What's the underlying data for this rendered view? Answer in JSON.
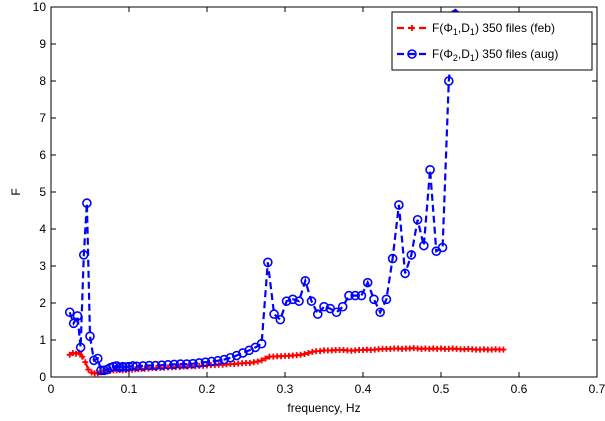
{
  "chart_data": {
    "type": "line",
    "title": "",
    "xlabel": "frequency, Hz",
    "ylabel": "F",
    "xlim": [
      0,
      0.7
    ],
    "ylim": [
      0,
      10
    ],
    "xticks": [
      0,
      0.1,
      0.2,
      0.3,
      0.4,
      0.5,
      0.6,
      0.7
    ],
    "yticks": [
      0,
      1,
      2,
      3,
      4,
      5,
      6,
      7,
      8,
      9,
      10
    ],
    "xtick_labels": [
      "0",
      "0.1",
      "0.2",
      "0.3",
      "0.4",
      "0.5",
      "0.6",
      "0.7"
    ],
    "ytick_labels": [
      "0",
      "1",
      "2",
      "3",
      "4",
      "5",
      "6",
      "7",
      "8",
      "9",
      "10"
    ],
    "grid": false,
    "legend_position": "top-right",
    "series": [
      {
        "name": "feb",
        "legend": {
          "prefix": "F(Φ",
          "sub1": "1",
          "mid": ",D",
          "sub2": "1",
          "suffix": ") 350 files (feb)"
        },
        "color": "#ff0000",
        "line_style": "dashed",
        "marker": "plus",
        "x": [
          0.024,
          0.028,
          0.032,
          0.036,
          0.04,
          0.044,
          0.048,
          0.052,
          0.056,
          0.06,
          0.064,
          0.068,
          0.072,
          0.076,
          0.08,
          0.084,
          0.088,
          0.092,
          0.096,
          0.1,
          0.104,
          0.108,
          0.112,
          0.116,
          0.12,
          0.125,
          0.13,
          0.135,
          0.14,
          0.145,
          0.15,
          0.155,
          0.16,
          0.165,
          0.17,
          0.175,
          0.18,
          0.185,
          0.19,
          0.195,
          0.2,
          0.205,
          0.21,
          0.215,
          0.22,
          0.225,
          0.23,
          0.235,
          0.24,
          0.245,
          0.25,
          0.255,
          0.26,
          0.265,
          0.27,
          0.275,
          0.28,
          0.285,
          0.29,
          0.295,
          0.3,
          0.305,
          0.31,
          0.315,
          0.32,
          0.325,
          0.33,
          0.335,
          0.34,
          0.345,
          0.35,
          0.355,
          0.36,
          0.365,
          0.37,
          0.375,
          0.38,
          0.385,
          0.39,
          0.395,
          0.4,
          0.405,
          0.41,
          0.415,
          0.42,
          0.425,
          0.43,
          0.435,
          0.44,
          0.445,
          0.45,
          0.455,
          0.46,
          0.465,
          0.47,
          0.475,
          0.48,
          0.485,
          0.49,
          0.495,
          0.5,
          0.505,
          0.51,
          0.515,
          0.52,
          0.525,
          0.53,
          0.535,
          0.54,
          0.545,
          0.55,
          0.555,
          0.56,
          0.565,
          0.57,
          0.575,
          0.58
        ],
        "y": [
          0.6,
          0.65,
          0.63,
          0.66,
          0.55,
          0.4,
          0.2,
          0.12,
          0.1,
          0.1,
          0.13,
          0.15,
          0.16,
          0.17,
          0.18,
          0.18,
          0.19,
          0.18,
          0.19,
          0.2,
          0.2,
          0.21,
          0.21,
          0.22,
          0.22,
          0.23,
          0.24,
          0.24,
          0.25,
          0.25,
          0.26,
          0.26,
          0.27,
          0.27,
          0.28,
          0.28,
          0.29,
          0.29,
          0.3,
          0.3,
          0.31,
          0.32,
          0.32,
          0.33,
          0.33,
          0.34,
          0.35,
          0.35,
          0.36,
          0.37,
          0.38,
          0.38,
          0.4,
          0.42,
          0.45,
          0.5,
          0.55,
          0.55,
          0.56,
          0.56,
          0.57,
          0.57,
          0.58,
          0.59,
          0.6,
          0.62,
          0.65,
          0.68,
          0.7,
          0.7,
          0.72,
          0.72,
          0.72,
          0.73,
          0.73,
          0.73,
          0.72,
          0.71,
          0.72,
          0.73,
          0.73,
          0.74,
          0.73,
          0.74,
          0.75,
          0.76,
          0.76,
          0.76,
          0.77,
          0.77,
          0.76,
          0.77,
          0.77,
          0.78,
          0.77,
          0.76,
          0.77,
          0.76,
          0.77,
          0.76,
          0.77,
          0.76,
          0.76,
          0.77,
          0.76,
          0.75,
          0.75,
          0.76,
          0.75,
          0.74,
          0.74,
          0.75,
          0.74,
          0.74,
          0.75,
          0.74,
          0.74
        ]
      },
      {
        "name": "aug",
        "legend": {
          "prefix": "F(Φ",
          "sub1": "2",
          "mid": ",D",
          "sub2": "1",
          "suffix": ") 350 files (aug)"
        },
        "color": "#0000ff",
        "line_style": "dashed",
        "marker": "circle",
        "x": [
          0.024,
          0.029,
          0.034,
          0.038,
          0.042,
          0.046,
          0.05,
          0.055,
          0.06,
          0.064,
          0.068,
          0.072,
          0.076,
          0.08,
          0.084,
          0.088,
          0.092,
          0.096,
          0.1,
          0.105,
          0.11,
          0.118,
          0.126,
          0.134,
          0.142,
          0.15,
          0.158,
          0.166,
          0.174,
          0.182,
          0.19,
          0.198,
          0.206,
          0.214,
          0.222,
          0.23,
          0.238,
          0.246,
          0.254,
          0.262,
          0.27,
          0.278,
          0.286,
          0.294,
          0.302,
          0.31,
          0.318,
          0.326,
          0.334,
          0.342,
          0.35,
          0.358,
          0.366,
          0.374,
          0.382,
          0.39,
          0.398,
          0.406,
          0.414,
          0.422,
          0.43,
          0.438,
          0.446,
          0.454,
          0.462,
          0.47,
          0.478,
          0.486,
          0.494,
          0.502,
          0.51,
          0.518,
          0.526,
          0.534,
          0.542,
          0.55,
          0.558,
          0.566
        ],
        "y": [
          1.75,
          1.45,
          1.65,
          0.8,
          3.3,
          4.7,
          1.1,
          0.45,
          0.5,
          0.18,
          0.18,
          0.2,
          0.25,
          0.28,
          0.3,
          0.26,
          0.28,
          0.27,
          0.28,
          0.3,
          0.29,
          0.3,
          0.31,
          0.31,
          0.32,
          0.33,
          0.34,
          0.35,
          0.35,
          0.36,
          0.38,
          0.4,
          0.42,
          0.44,
          0.47,
          0.52,
          0.58,
          0.65,
          0.72,
          0.8,
          0.9,
          3.1,
          1.7,
          1.55,
          2.05,
          2.1,
          2.05,
          2.6,
          2.05,
          1.7,
          1.9,
          1.85,
          1.75,
          1.9,
          2.2,
          2.2,
          2.2,
          2.55,
          2.1,
          1.75,
          2.1,
          3.2,
          4.65,
          2.8,
          3.3,
          4.25,
          3.55,
          5.6,
          3.4,
          3.5,
          8.0,
          9.8,
          null,
          null,
          null,
          null,
          null,
          null
        ]
      }
    ]
  }
}
